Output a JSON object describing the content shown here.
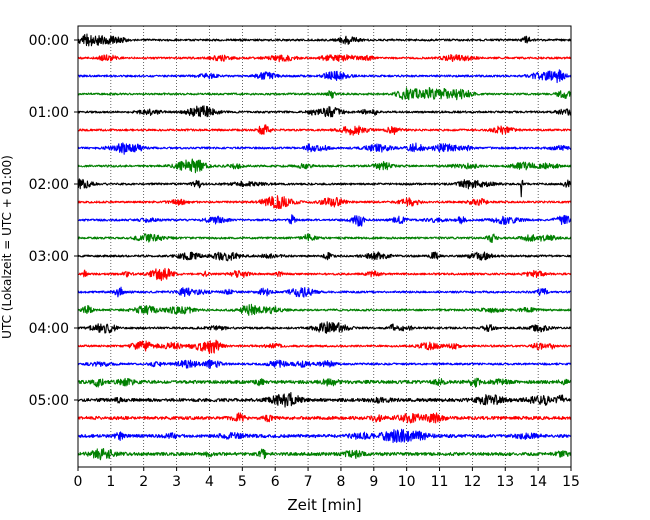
{
  "chart_data": {
    "type": "line",
    "title": "",
    "xlabel": "Zeit  [min]",
    "ylabel": "UTC (Lokalzeit = UTC + 01:00)",
    "xlim": [
      0,
      15
    ],
    "x_ticks": [
      "0",
      "1",
      "2",
      "3",
      "4",
      "5",
      "6",
      "7",
      "8",
      "9",
      "10",
      "11",
      "12",
      "13",
      "14",
      "15"
    ],
    "y_tick_labels": [
      "00:00",
      "01:00",
      "02:00",
      "03:00",
      "04:00",
      "05:00"
    ],
    "trace_interval_minutes": 15,
    "trace_count": 24,
    "trace_colors": [
      "#000000",
      "#ff0000",
      "#0000ff",
      "#008000"
    ],
    "grid": "vertical-dotted",
    "events": [
      {
        "trace_start": "02:00",
        "minute": 13.5,
        "description": "spike"
      }
    ],
    "series": [
      {
        "start": "00:00",
        "color": "#000000"
      },
      {
        "start": "00:15",
        "color": "#ff0000"
      },
      {
        "start": "00:30",
        "color": "#0000ff"
      },
      {
        "start": "00:45",
        "color": "#008000"
      },
      {
        "start": "01:00",
        "color": "#000000"
      },
      {
        "start": "01:15",
        "color": "#ff0000"
      },
      {
        "start": "01:30",
        "color": "#0000ff"
      },
      {
        "start": "01:45",
        "color": "#008000"
      },
      {
        "start": "02:00",
        "color": "#000000"
      },
      {
        "start": "02:15",
        "color": "#ff0000"
      },
      {
        "start": "02:30",
        "color": "#0000ff"
      },
      {
        "start": "02:45",
        "color": "#008000"
      },
      {
        "start": "03:00",
        "color": "#000000"
      },
      {
        "start": "03:15",
        "color": "#ff0000"
      },
      {
        "start": "03:30",
        "color": "#0000ff"
      },
      {
        "start": "03:45",
        "color": "#008000"
      },
      {
        "start": "04:00",
        "color": "#000000"
      },
      {
        "start": "04:15",
        "color": "#ff0000"
      },
      {
        "start": "04:30",
        "color": "#0000ff"
      },
      {
        "start": "04:45",
        "color": "#008000"
      },
      {
        "start": "05:00",
        "color": "#000000"
      },
      {
        "start": "05:15",
        "color": "#ff0000"
      },
      {
        "start": "05:30",
        "color": "#0000ff"
      },
      {
        "start": "05:45",
        "color": "#008000"
      }
    ]
  }
}
